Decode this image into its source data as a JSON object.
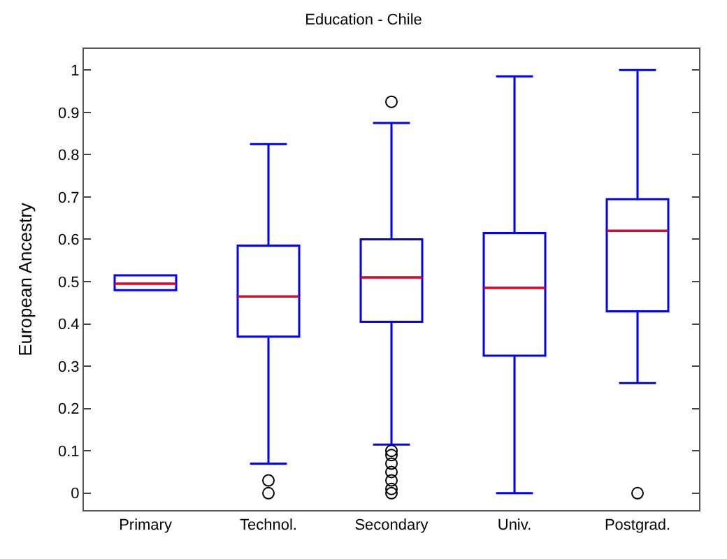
{
  "chart_data": {
    "type": "box",
    "title": "Education - Chile",
    "ylabel": "European Ancestry",
    "categories": [
      "Primary",
      "Technol.",
      "Secondary",
      "Univ.",
      "Postgrad."
    ],
    "series": [
      {
        "color": "#0000ff",
        "boxes": [
          {
            "low": 0.48,
            "q1": 0.48,
            "median": 0.495,
            "q3": 0.515,
            "high": 0.515
          },
          {
            "low": 0.07,
            "q1": 0.37,
            "median": 0.465,
            "q3": 0.585,
            "high": 0.825,
            "outliers": [
              0.0,
              0.03
            ]
          },
          {
            "low": 0.115,
            "q1": 0.405,
            "median": 0.51,
            "q3": 0.6,
            "high": 0.875,
            "outliers": [
              0.925,
              0.1,
              0.09,
              0.07,
              0.05,
              0.03,
              0.01,
              0.0
            ]
          },
          {
            "low": 0.0,
            "q1": 0.325,
            "median": 0.485,
            "q3": 0.615,
            "high": 0.985
          },
          {
            "low": 0.26,
            "q1": 0.43,
            "median": 0.62,
            "q3": 0.695,
            "high": 1.0,
            "outliers": [
              0.0
            ]
          }
        ]
      }
    ],
    "ylim": [
      -0.04,
      1.05
    ],
    "yticks": [
      0,
      0.1,
      0.2,
      0.3,
      0.4,
      0.5,
      0.6,
      0.7,
      0.8,
      0.9,
      1
    ]
  }
}
